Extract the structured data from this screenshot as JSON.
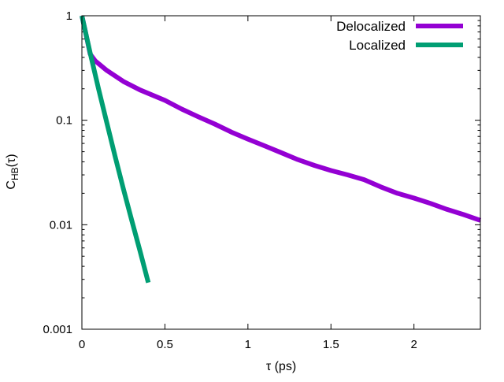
{
  "chart_data": {
    "type": "line",
    "title": "",
    "xlabel": "τ (ps)",
    "ylabel": {
      "main": "C",
      "sub": "HB",
      "arg": "(τ)"
    },
    "xlim": [
      0,
      2.4
    ],
    "ylim": [
      0.001,
      1
    ],
    "yscale": "log",
    "xticks": [
      {
        "value": 0,
        "label": "0"
      },
      {
        "value": 0.5,
        "label": "0.5"
      },
      {
        "value": 1,
        "label": "1"
      },
      {
        "value": 1.5,
        "label": "1.5"
      },
      {
        "value": 2,
        "label": "2"
      }
    ],
    "yticks": [
      {
        "value": 1,
        "label": "1"
      },
      {
        "value": 0.1,
        "label": "0.1"
      },
      {
        "value": 0.01,
        "label": "0.01"
      },
      {
        "value": 0.001,
        "label": "0.001"
      }
    ],
    "grid": false,
    "legend": "top-right",
    "series": [
      {
        "name": "Delocalized",
        "color": "#9400d3",
        "x": [
          0,
          0.02,
          0.05,
          0.08,
          0.15,
          0.25,
          0.35,
          0.5,
          0.6,
          0.7,
          0.8,
          0.9,
          1.0,
          1.1,
          1.2,
          1.3,
          1.4,
          1.5,
          1.6,
          1.7,
          1.8,
          1.9,
          2.0,
          2.1,
          2.2,
          2.3,
          2.4
        ],
        "y": [
          1.0,
          0.72,
          0.43,
          0.37,
          0.3,
          0.235,
          0.195,
          0.155,
          0.128,
          0.108,
          0.092,
          0.077,
          0.066,
          0.057,
          0.049,
          0.042,
          0.037,
          0.033,
          0.03,
          0.027,
          0.023,
          0.02,
          0.018,
          0.016,
          0.014,
          0.0125,
          0.011
        ]
      },
      {
        "name": "Localized",
        "color": "#009e73",
        "x": [
          0,
          0.02,
          0.05,
          0.1,
          0.15,
          0.2,
          0.25,
          0.3,
          0.35,
          0.4
        ],
        "y": [
          1.0,
          0.72,
          0.44,
          0.2,
          0.095,
          0.045,
          0.022,
          0.011,
          0.0056,
          0.0028
        ]
      }
    ]
  }
}
